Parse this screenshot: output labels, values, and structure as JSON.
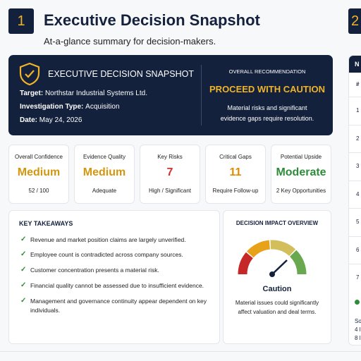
{
  "header": {
    "number": "1",
    "title": "Executive Decision Snapshot",
    "subtitle": "At-a-glance summary for decision-makers."
  },
  "summary": {
    "title": "EXECUTIVE DECISION SNAPSHOT",
    "details": [
      {
        "label": "Target:",
        "value": "Northstar Industrial Systems Ltd."
      },
      {
        "label": "Investigation Type:",
        "value": "Acquisition"
      },
      {
        "label": "Date:",
        "value": "May 24, 2026"
      }
    ],
    "recommendation": {
      "label": "OVERALL RECOMMENDATION",
      "value": "PROCEED WITH CAUTION",
      "description": [
        "Material risks and significant",
        "evidence gaps require resolution."
      ]
    }
  },
  "metrics": [
    {
      "label": "Overall Confidence",
      "value": "Medium",
      "note": "52 / 100",
      "color": "#d4960f"
    },
    {
      "label": "Evidence Quality",
      "value": "Medium",
      "note": "Adequate",
      "color": "#d4960f"
    },
    {
      "label": "Key Risks",
      "value": "7",
      "note": "High / Significant",
      "color": "#d32f2f"
    },
    {
      "label": "Critical Gaps",
      "value": "11",
      "note": "Require Follow-up",
      "color": "#e08a00"
    },
    {
      "label": "Potential Upside",
      "value": "Moderate",
      "note": "2 Key Opportunities",
      "color": "#2e8b3a"
    }
  ],
  "takeaways": {
    "title": "KEY TAKEAWAYS",
    "items": [
      "Revenue and market position claims are largely unverified.",
      "Employee count is contradicted across company sources.",
      "Customer concentration presents a material risk.",
      "Financial quality cannot be assessed due to insufficient evidence.",
      "Management and governance continuity appear dependent on key individuals."
    ]
  },
  "impact": {
    "title": "DECISION IMPACT OVERVIEW",
    "status": "Caution",
    "description": [
      "Material issues could significantly",
      "affect valuation and deal terms."
    ]
  },
  "next_panel": {
    "number": "2",
    "title": "N",
    "column": "#",
    "rows": [
      "1",
      "2",
      "3",
      "4",
      "5",
      "6",
      "7"
    ],
    "footer": [
      "So",
      "4 l",
      "8 l"
    ]
  }
}
